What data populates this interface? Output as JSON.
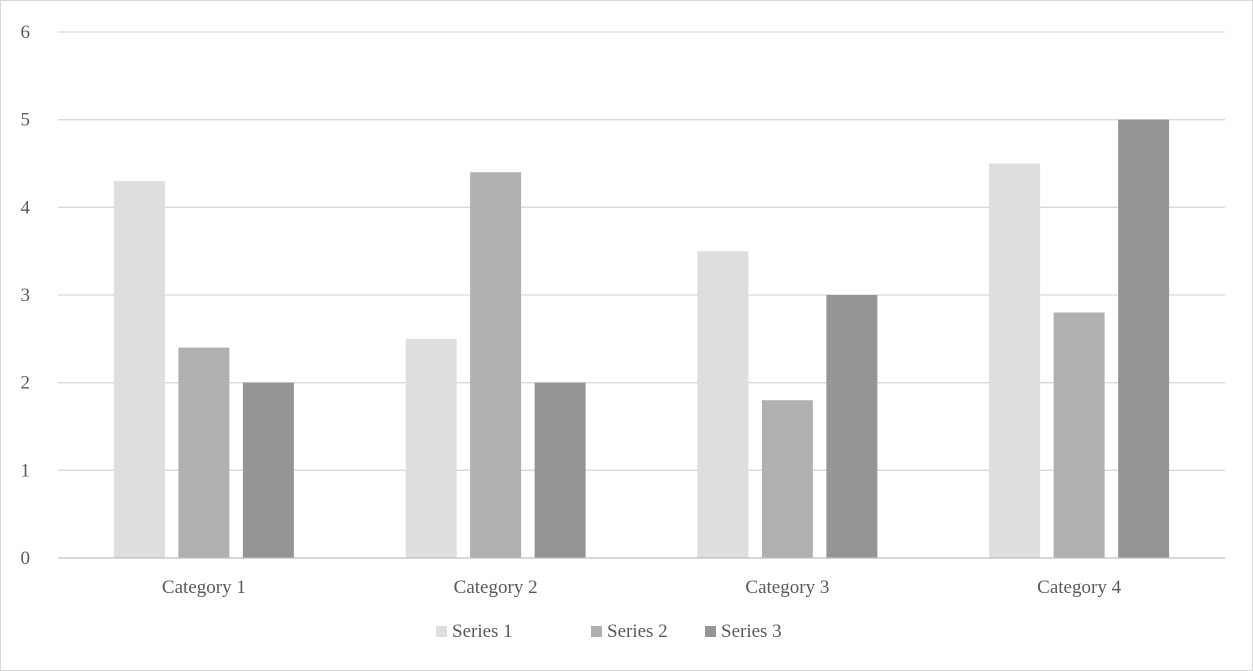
{
  "chart_data": {
    "type": "bar",
    "title": "",
    "xlabel": "",
    "ylabel": "",
    "categories": [
      "Category 1",
      "Category 2",
      "Category 3",
      "Category 4"
    ],
    "series": [
      {
        "name": "Series 1",
        "values": [
          4.3,
          2.5,
          3.5,
          4.5
        ],
        "color": "#dedede"
      },
      {
        "name": "Series 2",
        "values": [
          2.4,
          4.4,
          1.8,
          2.8
        ],
        "color": "#b0b0b0"
      },
      {
        "name": "Series 3",
        "values": [
          2,
          2,
          3,
          5
        ],
        "color": "#959595"
      }
    ],
    "ylim": [
      0,
      6
    ],
    "yticks": [
      "0",
      "1",
      "2",
      "3",
      "4",
      "5",
      "6"
    ],
    "grid": true,
    "legend_position": "bottom",
    "gridline_color": "#d9d9d9",
    "axis_line_color": "#bfbfbf"
  }
}
